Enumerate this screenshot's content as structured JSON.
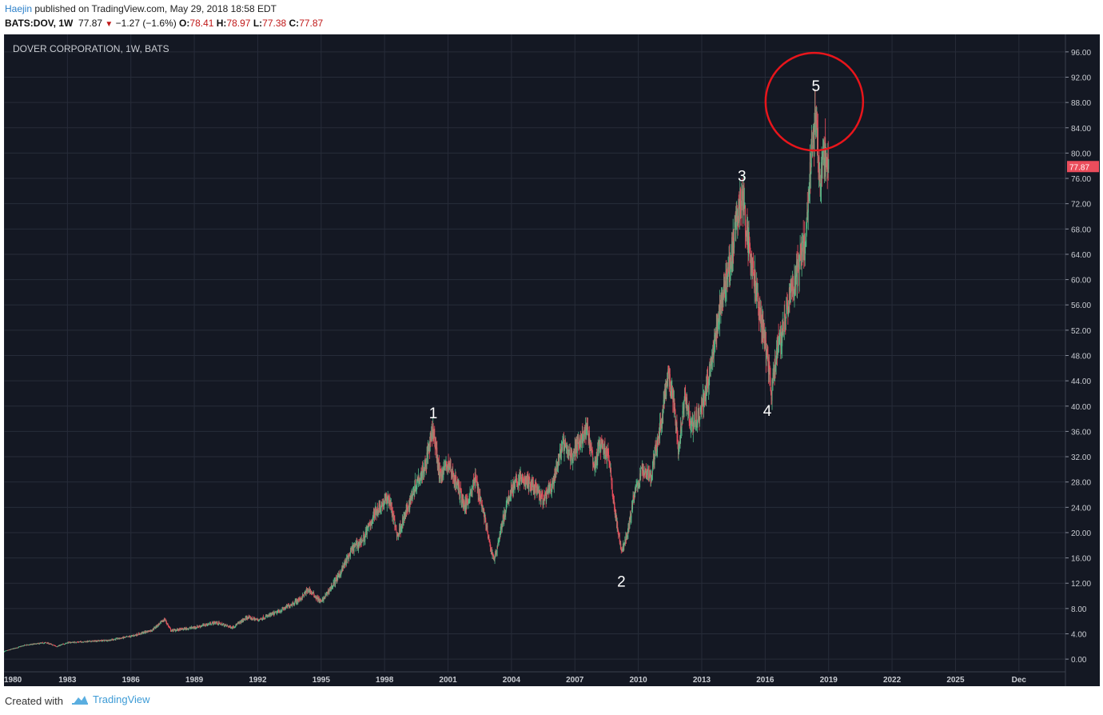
{
  "header": {
    "author": "Haejin",
    "published_text": "published on TradingView.com, May 29, 2018 18:58 EDT",
    "symbol": "BATS:DOV, 1W",
    "last": "77.87",
    "change": "−1.27 (−1.6%)",
    "o_label": "O:",
    "o_value": "78.41",
    "h_label": "H:",
    "h_value": "78.97",
    "l_label": "L:",
    "l_value": "77.38",
    "c_label": "C:",
    "c_value": "77.87"
  },
  "footer": {
    "created_with": "Created with",
    "brand": "TradingView"
  },
  "colors": {
    "background": "#141823",
    "up": "#53b987",
    "down": "#eb4d5c",
    "circle": "#e8151b",
    "price_tag": "#eb4d5c"
  },
  "chart_data": {
    "type": "candlestick",
    "title": "DOVER CORPORATION, 1W, BATS",
    "x_range": [
      1980.0,
      2030.2
    ],
    "ylim": [
      -1.5,
      97.5
    ],
    "y_ticks": [
      "96.00",
      "92.00",
      "88.00",
      "84.00",
      "80.00",
      "76.00",
      "72.00",
      "68.00",
      "64.00",
      "60.00",
      "56.00",
      "52.00",
      "48.00",
      "44.00",
      "40.00",
      "36.00",
      "32.00",
      "28.00",
      "24.00",
      "20.00",
      "16.00",
      "12.00",
      "8.00",
      "4.00",
      "0.00"
    ],
    "x_ticks": [
      "1980",
      "1983",
      "1986",
      "1989",
      "1992",
      "1995",
      "1998",
      "2001",
      "2004",
      "2007",
      "2010",
      "2013",
      "2016",
      "2019",
      "2022",
      "2025",
      "Dec"
    ],
    "x_tick_positions": [
      1980,
      1983,
      1986,
      1989,
      1992,
      1995,
      1998,
      2001,
      2004,
      2007,
      2010,
      2013,
      2016,
      2019,
      2022,
      2025,
      2028
    ],
    "last_price": "77.87",
    "price_path": [
      [
        1980.0,
        1.2
      ],
      [
        1981.0,
        2.2
      ],
      [
        1982.0,
        2.6
      ],
      [
        1982.5,
        2.0
      ],
      [
        1983.0,
        2.6
      ],
      [
        1984.0,
        2.8
      ],
      [
        1985.0,
        3.0
      ],
      [
        1986.0,
        3.6
      ],
      [
        1987.0,
        4.6
      ],
      [
        1987.6,
        6.3
      ],
      [
        1987.9,
        4.5
      ],
      [
        1989.0,
        5.0
      ],
      [
        1990.0,
        5.8
      ],
      [
        1990.8,
        5.0
      ],
      [
        1991.5,
        6.6
      ],
      [
        1992.0,
        6.2
      ],
      [
        1993.0,
        7.5
      ],
      [
        1994.0,
        9.5
      ],
      [
        1994.4,
        11.0
      ],
      [
        1995.0,
        9.0
      ],
      [
        1995.8,
        13.0
      ],
      [
        1996.5,
        17.5
      ],
      [
        1997.0,
        19.0
      ],
      [
        1997.6,
        23.5
      ],
      [
        1998.2,
        25.5
      ],
      [
        1998.6,
        19.5
      ],
      [
        1999.0,
        23.0
      ],
      [
        1999.5,
        28.0
      ],
      [
        1999.9,
        30.5
      ],
      [
        2000.3,
        36.3
      ],
      [
        2000.6,
        29.0
      ],
      [
        2001.0,
        31.0
      ],
      [
        2001.5,
        27.0
      ],
      [
        2001.8,
        24.0
      ],
      [
        2002.3,
        28.5
      ],
      [
        2002.7,
        23.0
      ],
      [
        2003.0,
        17.5
      ],
      [
        2003.2,
        15.8
      ],
      [
        2003.6,
        22.0
      ],
      [
        2004.0,
        27.0
      ],
      [
        2004.4,
        28.5
      ],
      [
        2005.0,
        27.5
      ],
      [
        2005.5,
        25.0
      ],
      [
        2006.0,
        28.0
      ],
      [
        2006.4,
        34.0
      ],
      [
        2006.8,
        32.0
      ],
      [
        2007.3,
        35.0
      ],
      [
        2007.6,
        36.3
      ],
      [
        2007.9,
        30.0
      ],
      [
        2008.2,
        34.0
      ],
      [
        2008.6,
        32.0
      ],
      [
        2008.9,
        23.0
      ],
      [
        2009.2,
        17.0
      ],
      [
        2009.5,
        20.0
      ],
      [
        2009.8,
        26.0
      ],
      [
        2010.2,
        30.0
      ],
      [
        2010.6,
        29.0
      ],
      [
        2011.0,
        36.0
      ],
      [
        2011.4,
        45.0
      ],
      [
        2011.7,
        40.0
      ],
      [
        2011.9,
        33.0
      ],
      [
        2012.2,
        42.0
      ],
      [
        2012.5,
        37.0
      ],
      [
        2012.8,
        38.0
      ],
      [
        2013.2,
        42.0
      ],
      [
        2013.6,
        50.0
      ],
      [
        2014.0,
        58.0
      ],
      [
        2014.3,
        62.0
      ],
      [
        2014.5,
        66.0
      ],
      [
        2014.9,
        73.8
      ],
      [
        2015.2,
        66.0
      ],
      [
        2015.6,
        58.0
      ],
      [
        2015.9,
        52.0
      ],
      [
        2016.1,
        47.0
      ],
      [
        2016.3,
        42.0
      ],
      [
        2016.6,
        50.0
      ],
      [
        2016.9,
        53.0
      ],
      [
        2017.2,
        58.0
      ],
      [
        2017.6,
        62.0
      ],
      [
        2017.9,
        66.0
      ],
      [
        2018.2,
        80.0
      ],
      [
        2018.4,
        86.0
      ],
      [
        2018.6,
        76.0
      ],
      [
        2018.8,
        80.0
      ],
      [
        2019.0,
        77.87
      ]
    ],
    "annotations": [
      {
        "label": "1",
        "x": 2000.3,
        "y": 36.3
      },
      {
        "label": "2",
        "x": 2009.2,
        "y": 15.0
      },
      {
        "label": "3",
        "x": 2014.9,
        "y": 73.8
      },
      {
        "label": "4",
        "x": 2016.1,
        "y": 42.0
      },
      {
        "label": "5",
        "x": 2018.4,
        "y": 88.0
      }
    ]
  }
}
